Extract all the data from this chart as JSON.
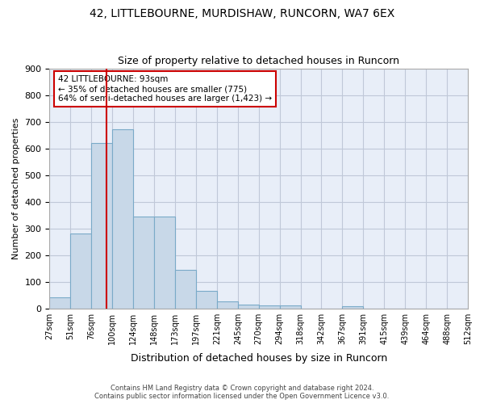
{
  "title1": "42, LITTLEBOURNE, MURDISHAW, RUNCORN, WA7 6EX",
  "title2": "Size of property relative to detached houses in Runcorn",
  "xlabel": "Distribution of detached houses by size in Runcorn",
  "ylabel": "Number of detached properties",
  "footnote1": "Contains HM Land Registry data © Crown copyright and database right 2024.",
  "footnote2": "Contains public sector information licensed under the Open Government Licence v3.0.",
  "bin_labels": [
    "27sqm",
    "51sqm",
    "76sqm",
    "100sqm",
    "124sqm",
    "148sqm",
    "173sqm",
    "197sqm",
    "221sqm",
    "245sqm",
    "270sqm",
    "294sqm",
    "318sqm",
    "342sqm",
    "367sqm",
    "391sqm",
    "415sqm",
    "439sqm",
    "464sqm",
    "488sqm",
    "512sqm"
  ],
  "bar_values": [
    40,
    280,
    620,
    670,
    345,
    345,
    145,
    65,
    27,
    13,
    10,
    10,
    0,
    0,
    8,
    0,
    0,
    0,
    0,
    0
  ],
  "bar_color": "#c8d8e8",
  "bar_edge_color": "#7aaac8",
  "vline_color": "#cc0000",
  "annotation_text": "42 LITTLEBOURNE: 93sqm\n← 35% of detached houses are smaller (775)\n64% of semi-detached houses are larger (1,423) →",
  "annotation_box_color": "#ffffff",
  "annotation_box_edge": "#cc0000",
  "ylim": [
    0,
    900
  ],
  "yticks": [
    0,
    100,
    200,
    300,
    400,
    500,
    600,
    700,
    800,
    900
  ],
  "grid_color": "#c0c8d8",
  "background_color": "#e8eef8"
}
